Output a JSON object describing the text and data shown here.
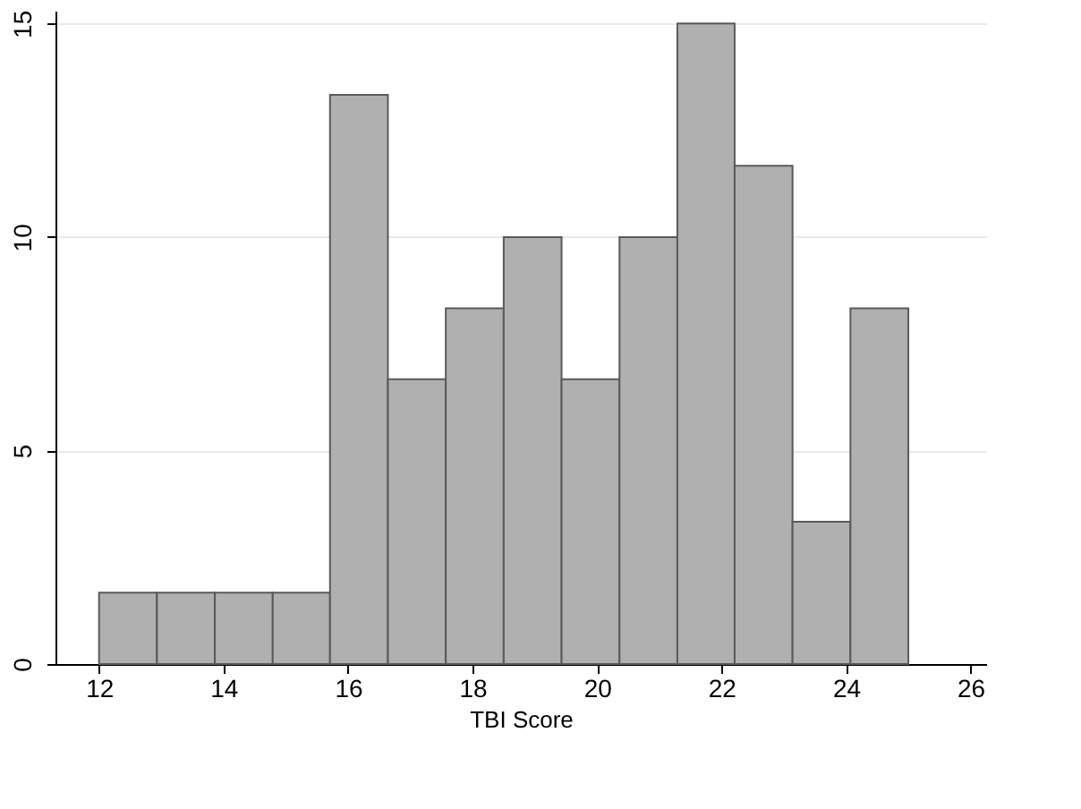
{
  "chart_data": {
    "type": "histogram",
    "xlabel": "TBI Score",
    "bins": [
      12,
      12.93,
      13.86,
      14.79,
      15.71,
      16.64,
      17.57,
      18.5,
      19.43,
      20.36,
      21.29,
      22.21,
      23.14,
      24.07,
      25
    ],
    "values": [
      1.67,
      1.67,
      1.67,
      1.67,
      13.33,
      6.67,
      8.33,
      10,
      6.67,
      10,
      15,
      11.67,
      3.33,
      8.33
    ],
    "color": "#b0b0b0",
    "xlim": [
      11.3,
      26.25
    ],
    "xticks": [
      12,
      14,
      16,
      18,
      20,
      22,
      24,
      26
    ],
    "ylim": [
      0,
      15.3
    ],
    "yticks": [
      0,
      5,
      10,
      15
    ],
    "grid": "y"
  }
}
